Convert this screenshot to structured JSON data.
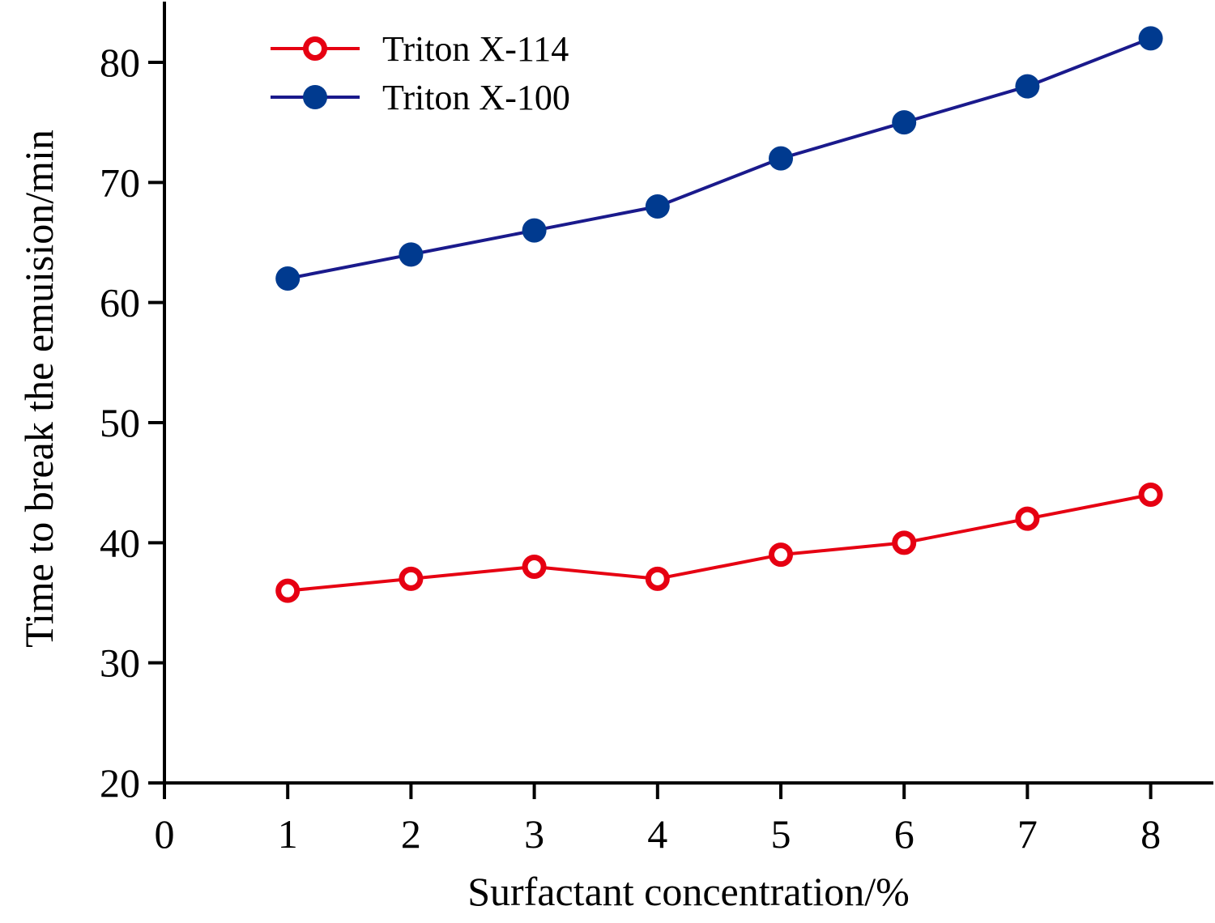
{
  "chart_data": {
    "type": "line",
    "title": "",
    "xlabel": "Surfactant concentration/%",
    "ylabel": "Time to break the emuision/min",
    "xlim": [
      0,
      8.5
    ],
    "ylim": [
      20,
      82
    ],
    "x_ticks": [
      0,
      1,
      2,
      3,
      4,
      5,
      6,
      7,
      8
    ],
    "y_ticks": [
      20,
      30,
      40,
      50,
      60,
      70,
      80
    ],
    "x_tick_labels": [
      "0",
      "1",
      "2",
      "3",
      "4",
      "5",
      "6",
      "7",
      "8"
    ],
    "y_tick_labels": [
      "20",
      "30",
      "40",
      "50",
      "60",
      "70",
      "80"
    ],
    "grid": false,
    "legend_position": "top-left",
    "x": [
      1,
      2,
      3,
      4,
      5,
      6,
      7,
      8
    ],
    "series": [
      {
        "name": "Triton X-114",
        "marker": "open-circle",
        "color": "#E60012",
        "values": [
          36,
          37,
          38,
          37,
          39,
          40,
          42,
          44
        ]
      },
      {
        "name": "Triton X-100",
        "marker": "filled-circle",
        "color": "#1A1A8C",
        "marker_color": "#003A8F",
        "values": [
          62,
          64,
          66,
          68,
          72,
          75,
          78,
          82
        ]
      }
    ]
  }
}
